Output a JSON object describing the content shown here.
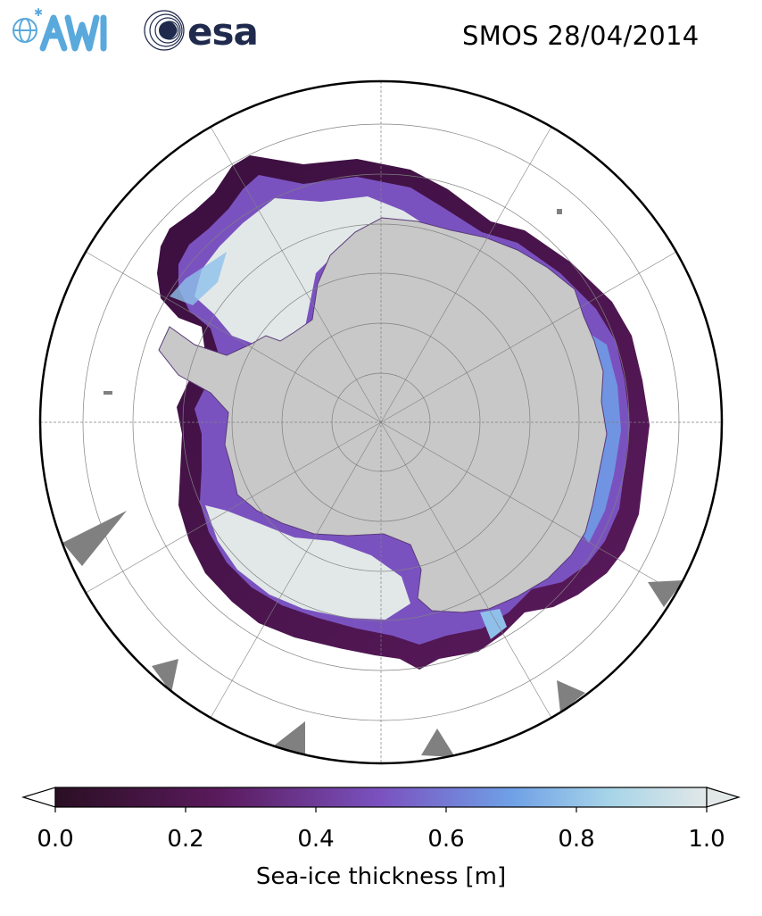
{
  "header": {
    "title": "SMOS 28/04/2014",
    "logos": [
      {
        "name": "awi-logo",
        "text": "AWI"
      },
      {
        "name": "esa-logo",
        "text": "esa"
      }
    ]
  },
  "map": {
    "projection": "south-polar-stereographic",
    "graticule": "on",
    "land_color": "#c8c8c8",
    "open_water_color": "#ffffff",
    "missing_data_color": "#808080"
  },
  "colorbar": {
    "label": "Sea-ice thickness [m]",
    "ticks": [
      "0.0",
      "0.2",
      "0.4",
      "0.6",
      "0.8",
      "1.0"
    ],
    "range": [
      0.0,
      1.0
    ],
    "extend": "both",
    "colors": [
      "#2a0f24",
      "#5a1a5c",
      "#7a52c0",
      "#6fa0e6",
      "#e2e8e8"
    ]
  }
}
